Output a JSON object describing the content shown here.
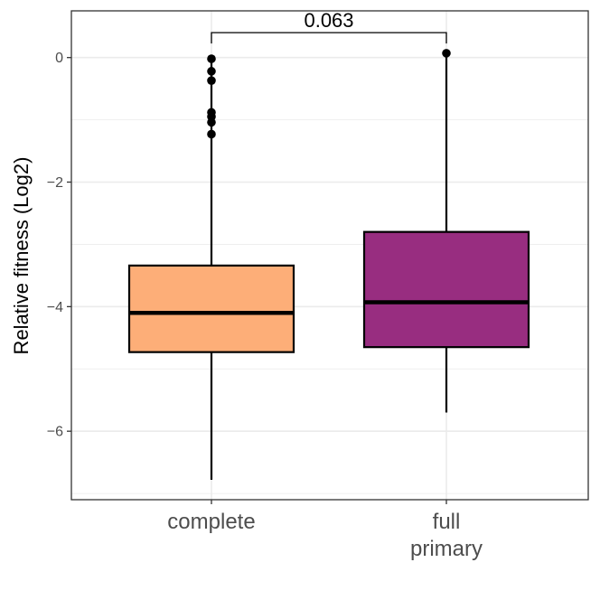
{
  "chart_data": {
    "type": "box",
    "title": "",
    "xlabel": "",
    "ylabel": "Relative fitness (Log2)",
    "ylim": [
      -7.1,
      0.75
    ],
    "yticks": [
      0,
      -2,
      -4,
      -6
    ],
    "ytick_labels": [
      "0",
      "−2",
      "−4",
      "−6"
    ],
    "grid": true,
    "legend": "none",
    "categories": [
      {
        "label_lines": [
          "complete"
        ]
      },
      {
        "label_lines": [
          "full",
          "primary"
        ]
      }
    ],
    "boxes": [
      {
        "q1": -4.73,
        "median": -4.1,
        "q3": -3.34,
        "whisker_low": -6.78,
        "whisker_high": -0.02,
        "outliers": [
          -0.02,
          -0.22,
          -0.37,
          -0.88,
          -0.95,
          -1.04,
          -1.23
        ],
        "color": "#fdae78"
      },
      {
        "q1": -4.65,
        "median": -3.93,
        "q3": -2.8,
        "whisker_low": -5.7,
        "whisker_high": 0.07,
        "outliers": [
          0.07
        ],
        "color": "#982d80"
      }
    ],
    "comparison": {
      "label": "0.063",
      "y": 0.4
    }
  }
}
